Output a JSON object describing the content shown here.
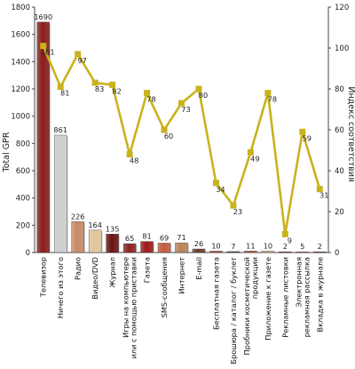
{
  "chart_data": {
    "type": "bar",
    "categories": [
      "Телевизор",
      "Ничего из этого",
      "Радио",
      "Видео/DVD",
      "Журнал",
      "Игры на компьютере или с помощью приставки",
      "Газета",
      "SMS-сообщения",
      "Интернет",
      "E-mail",
      "Бесплатная газета",
      "Брошюра / каталог / буклет",
      "Пробники косметической продукции",
      "Приложение к газете",
      "Рекламные листовки",
      "Электронная рекламная рассылка",
      "Вкладка в журнале"
    ],
    "category_lines": [
      [
        "Телевизор"
      ],
      [
        "Ничего из этого"
      ],
      [
        "Радио"
      ],
      [
        "Видео/DVD"
      ],
      [
        "Журнал"
      ],
      [
        "Игры на компьютере",
        "или с помощью приставки"
      ],
      [
        "Газета"
      ],
      [
        "SMS-сообщения"
      ],
      [
        "Интернет"
      ],
      [
        "E-mail"
      ],
      [
        "Бесплатная газета"
      ],
      [
        "Брошюра / каталог / буклет"
      ],
      [
        "Пробники косметической",
        "продукции"
      ],
      [
        "Приложение к газете"
      ],
      [
        "Рекламные листовки"
      ],
      [
        "Электронная",
        "рекламная рассылка"
      ],
      [
        "Вкладка в журнале"
      ]
    ],
    "series": [
      {
        "kind": "bar",
        "axis": "left",
        "values": [
          1690,
          861,
          226,
          164,
          135,
          65,
          81,
          69,
          71,
          26,
          10,
          7,
          11,
          10,
          2,
          5,
          2
        ],
        "labels": [
          "1690",
          "861",
          "226",
          "164",
          "135",
          "65",
          "81",
          "69",
          "71",
          "26",
          "10",
          "7",
          "11",
          "10",
          "2",
          "5",
          "2"
        ],
        "colors": [
          "#8b1c1c",
          "#cfcfcf",
          "#c98a66",
          "#e3c79a",
          "#6a1212",
          "#8b2323",
          "#a01818",
          "#c85a42",
          "#b98555",
          "#6f3a2a",
          "#ad4630",
          "#4a4a4a",
          "#b8663a",
          "#d8b27a",
          "#7a1a1a",
          "#c07040",
          "#8a2020"
        ]
      },
      {
        "kind": "line",
        "axis": "right",
        "values": [
          101,
          81,
          97,
          83,
          82,
          48,
          78,
          60,
          73,
          80,
          34,
          23,
          49,
          78,
          9,
          59,
          31
        ],
        "labels": [
          "101",
          "81",
          "97",
          "83",
          "82",
          "48",
          "78",
          "60",
          "73",
          "80",
          "34",
          "23",
          "49",
          "78",
          "9",
          "59",
          "31"
        ],
        "color": "#c9b21c"
      }
    ],
    "ylabel": "Total GPR",
    "y2label": "Индекс соответствия",
    "ylim": [
      0,
      1800
    ],
    "y2lim": [
      0,
      120
    ],
    "yticks": [
      "0",
      "200",
      "400",
      "600",
      "800",
      "1000",
      "1200",
      "1400",
      "1600",
      "1800"
    ],
    "y2ticks": [
      "0",
      "20",
      "40",
      "60",
      "80",
      "100",
      "120"
    ],
    "grid": false,
    "legend": "none"
  }
}
